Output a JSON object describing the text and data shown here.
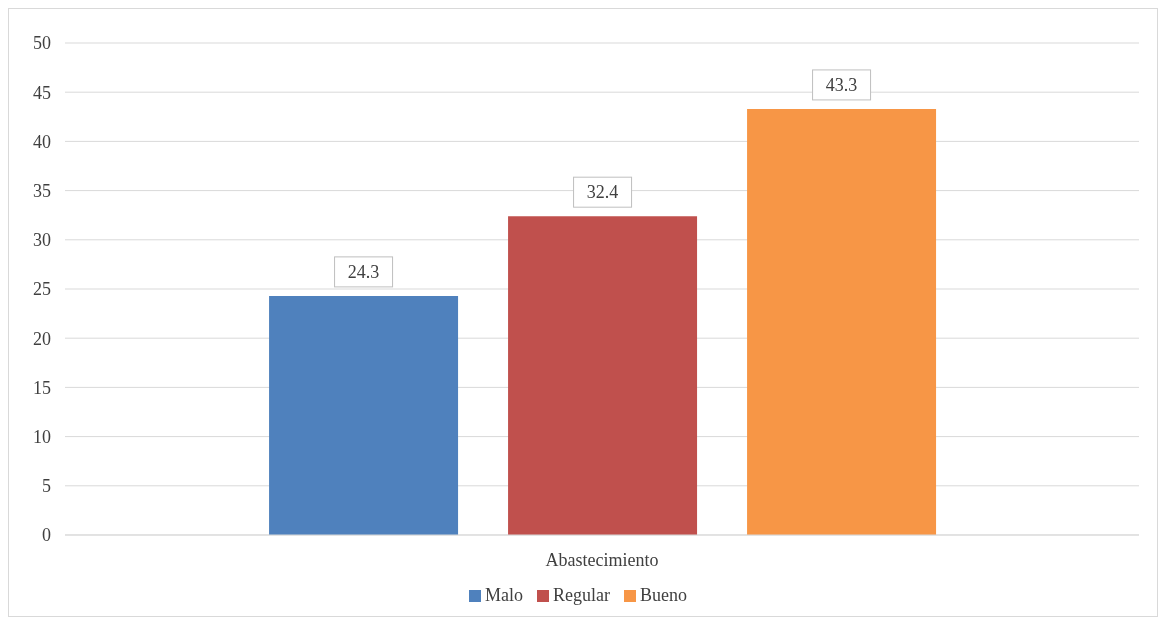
{
  "chart_data": {
    "type": "bar",
    "categories": [
      "Abastecimiento"
    ],
    "series": [
      {
        "name": "Malo",
        "color": "#4f81bd",
        "values": [
          24.3
        ]
      },
      {
        "name": "Regular",
        "color": "#c0504d",
        "values": [
          32.4
        ]
      },
      {
        "name": "Bueno",
        "color": "#f79646",
        "values": [
          43.3
        ]
      }
    ],
    "ylim": [
      0,
      50
    ],
    "yticks": [
      0,
      5,
      10,
      15,
      20,
      25,
      30,
      35,
      40,
      45,
      50
    ],
    "grid": "y",
    "legend": "bottom",
    "data_labels": true
  }
}
